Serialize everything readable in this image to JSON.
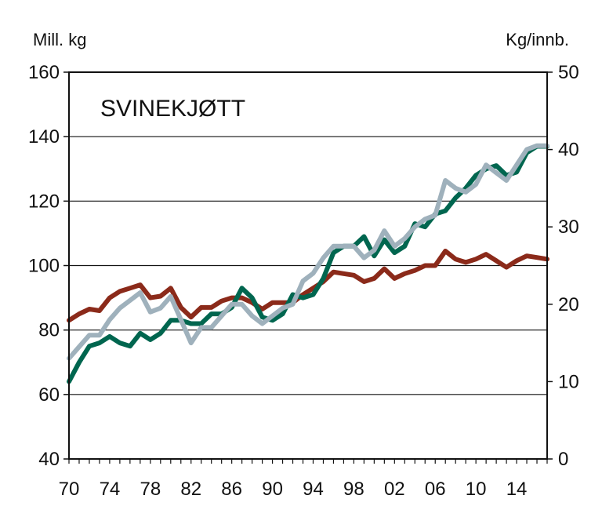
{
  "chart_data": {
    "type": "line",
    "title": "SVINEKJØTT",
    "left_axis": {
      "unit_label": "Mill. kg",
      "ylim": [
        40,
        160
      ],
      "ticks": [
        40,
        60,
        80,
        100,
        120,
        140,
        160
      ]
    },
    "right_axis": {
      "unit_label": "Kg/innb.",
      "ylim": [
        0,
        50
      ],
      "ticks": [
        0,
        10,
        20,
        30,
        40,
        50
      ]
    },
    "x_axis": {
      "tick_values": [
        1970,
        1974,
        1978,
        1982,
        1986,
        1990,
        1994,
        1998,
        2002,
        2006,
        2010,
        2014
      ],
      "tick_labels": [
        "70",
        "74",
        "78",
        "82",
        "86",
        "90",
        "94",
        "98",
        "02",
        "06",
        "10",
        "14"
      ],
      "xlim": [
        1970,
        2017
      ]
    },
    "grid": "horizontal",
    "colors": {
      "green": "#00664f",
      "brown": "#8b2a1a",
      "grey": "#9fb1bc"
    },
    "x": [
      1970,
      1971,
      1972,
      1973,
      1974,
      1975,
      1976,
      1977,
      1978,
      1979,
      1980,
      1981,
      1982,
      1983,
      1984,
      1985,
      1986,
      1987,
      1988,
      1989,
      1990,
      1991,
      1992,
      1993,
      1994,
      1995,
      1996,
      1997,
      1998,
      1999,
      2000,
      2001,
      2002,
      2003,
      2004,
      2005,
      2006,
      2007,
      2008,
      2009,
      2010,
      2011,
      2012,
      2013,
      2014,
      2015,
      2016,
      2017
    ],
    "series": [
      {
        "color_key": "green",
        "axis": "left",
        "values": [
          64,
          70,
          75,
          76,
          78,
          76,
          75,
          79,
          77,
          79,
          83,
          83,
          82,
          82,
          85,
          85,
          87,
          93,
          90,
          84,
          83,
          85,
          91,
          90,
          91,
          96,
          104,
          106,
          106,
          109,
          103,
          108,
          104,
          106,
          113,
          112,
          116,
          117,
          121,
          124,
          128,
          130,
          131,
          128,
          129,
          135,
          137,
          137
        ]
      },
      {
        "color_key": "brown",
        "axis": "left",
        "values": [
          83,
          85,
          86.5,
          86,
          90,
          92,
          93,
          94,
          90,
          90.5,
          93,
          87,
          84,
          87,
          87,
          89,
          90,
          90,
          88.5,
          86.5,
          88.5,
          88.5,
          88.5,
          91,
          93,
          95,
          98,
          97.5,
          97,
          95,
          96,
          99,
          96,
          97.5,
          98.5,
          100,
          100,
          104.5,
          102,
          101,
          102,
          103.5,
          101.5,
          99.5,
          101.5,
          103,
          102.5,
          102
        ]
      },
      {
        "color_key": "grey",
        "axis": "right",
        "values": [
          13,
          14.5,
          16,
          16,
          18,
          19.5,
          20.5,
          21.5,
          19,
          19.5,
          21,
          18,
          15,
          17,
          17,
          18.5,
          20,
          20,
          18.5,
          17.5,
          18.5,
          19.5,
          20,
          23,
          24,
          26,
          27.5,
          27.5,
          27.5,
          26,
          27,
          29.5,
          27.5,
          28.5,
          30,
          31,
          31.5,
          36,
          35,
          34.5,
          35.5,
          38,
          37,
          36,
          38,
          40,
          40.5,
          40.5
        ]
      }
    ]
  }
}
